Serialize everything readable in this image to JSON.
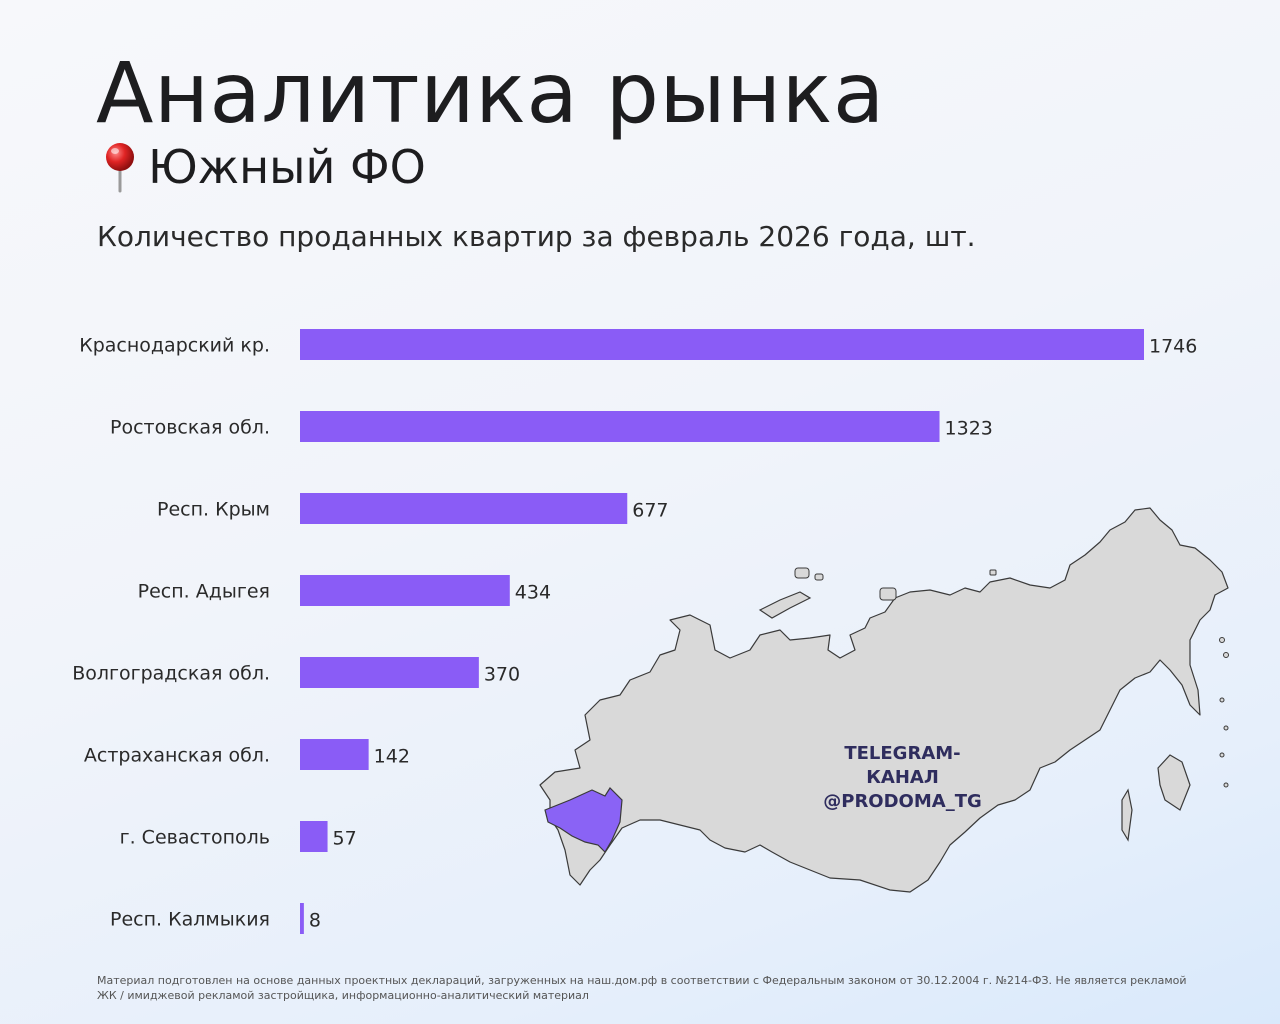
{
  "header": {
    "title": "Аналитика рынка",
    "subtitle": "Южный ФО",
    "pin_icon": "pushpin-icon"
  },
  "watermark": {
    "line1": "TELEGRAM-КАНАЛ",
    "line2": "@PRODOMA_TG"
  },
  "map": {
    "highlight_color": "#8a63f5",
    "base_color": "#d9d9d9"
  },
  "footnote": "Материал подготовлен на основе данных проектных деклараций, загруженных на наш.дом.рф в соответствии с Федеральным законом от 30.12.2004 г. №214-ФЗ. Не является рекламой ЖК / имиджевой рекламой застройщика, информационно-аналитический материал",
  "chart_data": {
    "type": "bar",
    "orientation": "horizontal",
    "title": "Количество проданных квартир за февраль 2026 года, шт.",
    "categories": [
      "Краснодарский кр.",
      "Ростовская обл.",
      "Респ. Крым",
      "Респ. Адыгея",
      "Волгоградская обл.",
      "Астраханская обл.",
      "г. Севастополь",
      "Респ. Калмыкия"
    ],
    "values": [
      1746,
      1323,
      677,
      434,
      370,
      142,
      57,
      8
    ],
    "bar_color": "#8a5cf6",
    "grid": false,
    "legend": "none"
  }
}
